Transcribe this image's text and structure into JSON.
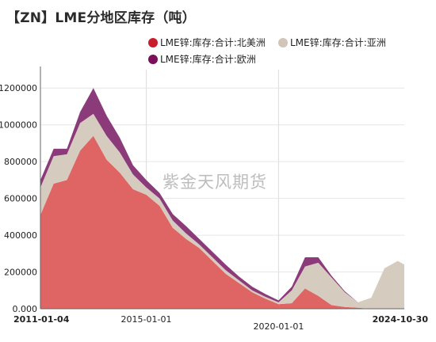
{
  "title": "【ZN】LME分地区库存（吨）",
  "watermark": "紫金天风期货",
  "chart_data": {
    "type": "area",
    "stacked": true,
    "ylim": [
      0,
      1300000
    ],
    "yticks": [
      "0.000",
      "200000",
      "400000",
      "600000",
      "800000",
      "1000000",
      "1200000"
    ],
    "ytick_values": [
      0,
      200000,
      400000,
      600000,
      800000,
      1000000,
      1200000
    ],
    "x": [
      "2011-01",
      "2011-07",
      "2012-01",
      "2012-07",
      "2013-01",
      "2013-07",
      "2014-01",
      "2014-07",
      "2015-01",
      "2015-07",
      "2016-01",
      "2016-07",
      "2017-01",
      "2017-07",
      "2018-01",
      "2018-07",
      "2019-01",
      "2019-07",
      "2020-01",
      "2020-07",
      "2021-01",
      "2021-07",
      "2022-01",
      "2022-07",
      "2023-01",
      "2023-07",
      "2024-01",
      "2024-07",
      "2024-10"
    ],
    "x_axis_labels": [
      {
        "text": "2011-01-04",
        "bold": true
      },
      {
        "text": "2015-01-01",
        "bold": false
      },
      {
        "text": "2020-01-01",
        "bold": false
      },
      {
        "text": "2024-10-30",
        "bold": true
      }
    ],
    "x_label_dates": [
      "2011-01",
      "2015-01",
      "2020-01",
      "2024-10"
    ],
    "gridline_dates": [
      "2015-01",
      "2020-01"
    ],
    "series": [
      {
        "name": "LME锌:库存:合计:北美洲",
        "color": "#df6464",
        "values": [
          510000,
          680000,
          700000,
          860000,
          940000,
          810000,
          740000,
          650000,
          620000,
          560000,
          440000,
          380000,
          330000,
          260000,
          190000,
          140000,
          90000,
          55000,
          25000,
          30000,
          110000,
          70000,
          20000,
          10000,
          5000,
          0,
          0,
          0,
          0
        ]
      },
      {
        "name": "LME锌:库存:合计:亚洲",
        "color": "#d6cbbf",
        "values": [
          150000,
          150000,
          140000,
          150000,
          120000,
          130000,
          110000,
          80000,
          40000,
          40000,
          40000,
          30000,
          20000,
          20000,
          20000,
          15000,
          10000,
          10000,
          10000,
          70000,
          120000,
          180000,
          150000,
          80000,
          30000,
          60000,
          220000,
          260000,
          240000
        ]
      },
      {
        "name": "LME锌:库存:合计:欧洲",
        "color": "#8b3a7a",
        "values": [
          40000,
          40000,
          30000,
          60000,
          140000,
          110000,
          80000,
          50000,
          40000,
          30000,
          35000,
          40000,
          30000,
          30000,
          30000,
          20000,
          20000,
          15000,
          10000,
          20000,
          50000,
          30000,
          10000,
          5000,
          0,
          0,
          0,
          0,
          0
        ]
      }
    ],
    "legend_position": "top-right",
    "grid": true
  },
  "legend": [
    {
      "label": "LME锌:库存:合计:北美洲",
      "color": "#c81d2c"
    },
    {
      "label": "LME锌:库存:合计:亚洲",
      "color": "#d1c5b7"
    },
    {
      "label": "LME锌:库存:合计:欧洲",
      "color": "#7b0f5a"
    }
  ]
}
